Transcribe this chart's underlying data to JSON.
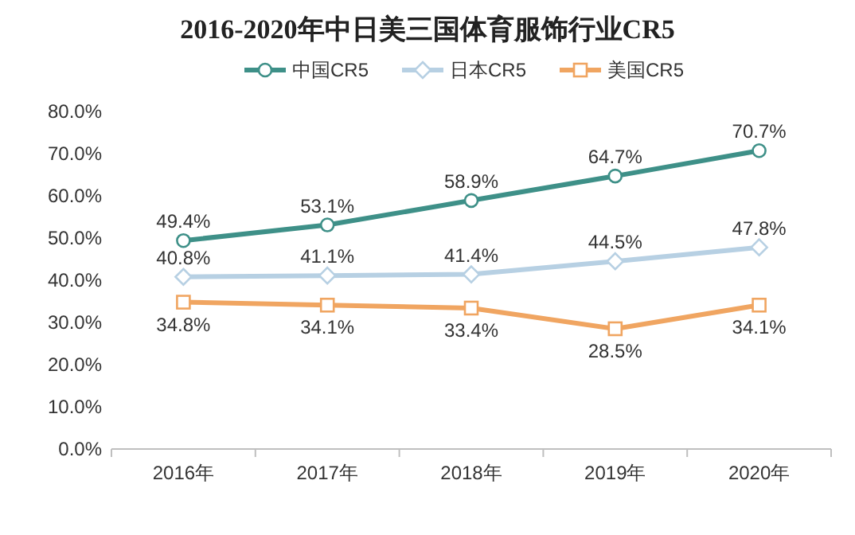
{
  "chart_data": {
    "type": "line",
    "title": "2016-2020年中日美三国体育服饰行业CR5",
    "categories": [
      "2016年",
      "2017年",
      "2018年",
      "2019年",
      "2020年"
    ],
    "series": [
      {
        "name": "中国CR5",
        "color": "#3e9088",
        "marker": "circle",
        "values": [
          49.4,
          53.1,
          58.9,
          64.7,
          70.7
        ],
        "value_labels": [
          "49.4%",
          "53.1%",
          "58.9%",
          "64.7%",
          "70.7%"
        ]
      },
      {
        "name": "日本CR5",
        "color": "#b7d0e3",
        "marker": "diamond",
        "values": [
          40.8,
          41.1,
          41.4,
          44.5,
          47.8
        ],
        "value_labels": [
          "40.8%",
          "41.1%",
          "41.4%",
          "44.5%",
          "47.8%"
        ]
      },
      {
        "name": "美国CR5",
        "color": "#f0a561",
        "marker": "square",
        "values": [
          34.8,
          34.1,
          33.4,
          28.5,
          34.1
        ],
        "value_labels": [
          "34.8%",
          "34.1%",
          "33.4%",
          "28.5%",
          "34.1%"
        ]
      }
    ],
    "ylim": [
      0,
      80
    ],
    "yticks": [
      {
        "value": 0,
        "label": "0.0%"
      },
      {
        "value": 10,
        "label": "10.0%"
      },
      {
        "value": 20,
        "label": "20.0%"
      },
      {
        "value": 30,
        "label": "30.0%"
      },
      {
        "value": 40,
        "label": "40.0%"
      },
      {
        "value": 50,
        "label": "50.0%"
      },
      {
        "value": 60,
        "label": "60.0%"
      },
      {
        "value": 70,
        "label": "70.0%"
      },
      {
        "value": 80,
        "label": "80.0%"
      }
    ],
    "grid": false,
    "legend": "top",
    "line_style": "solid"
  }
}
